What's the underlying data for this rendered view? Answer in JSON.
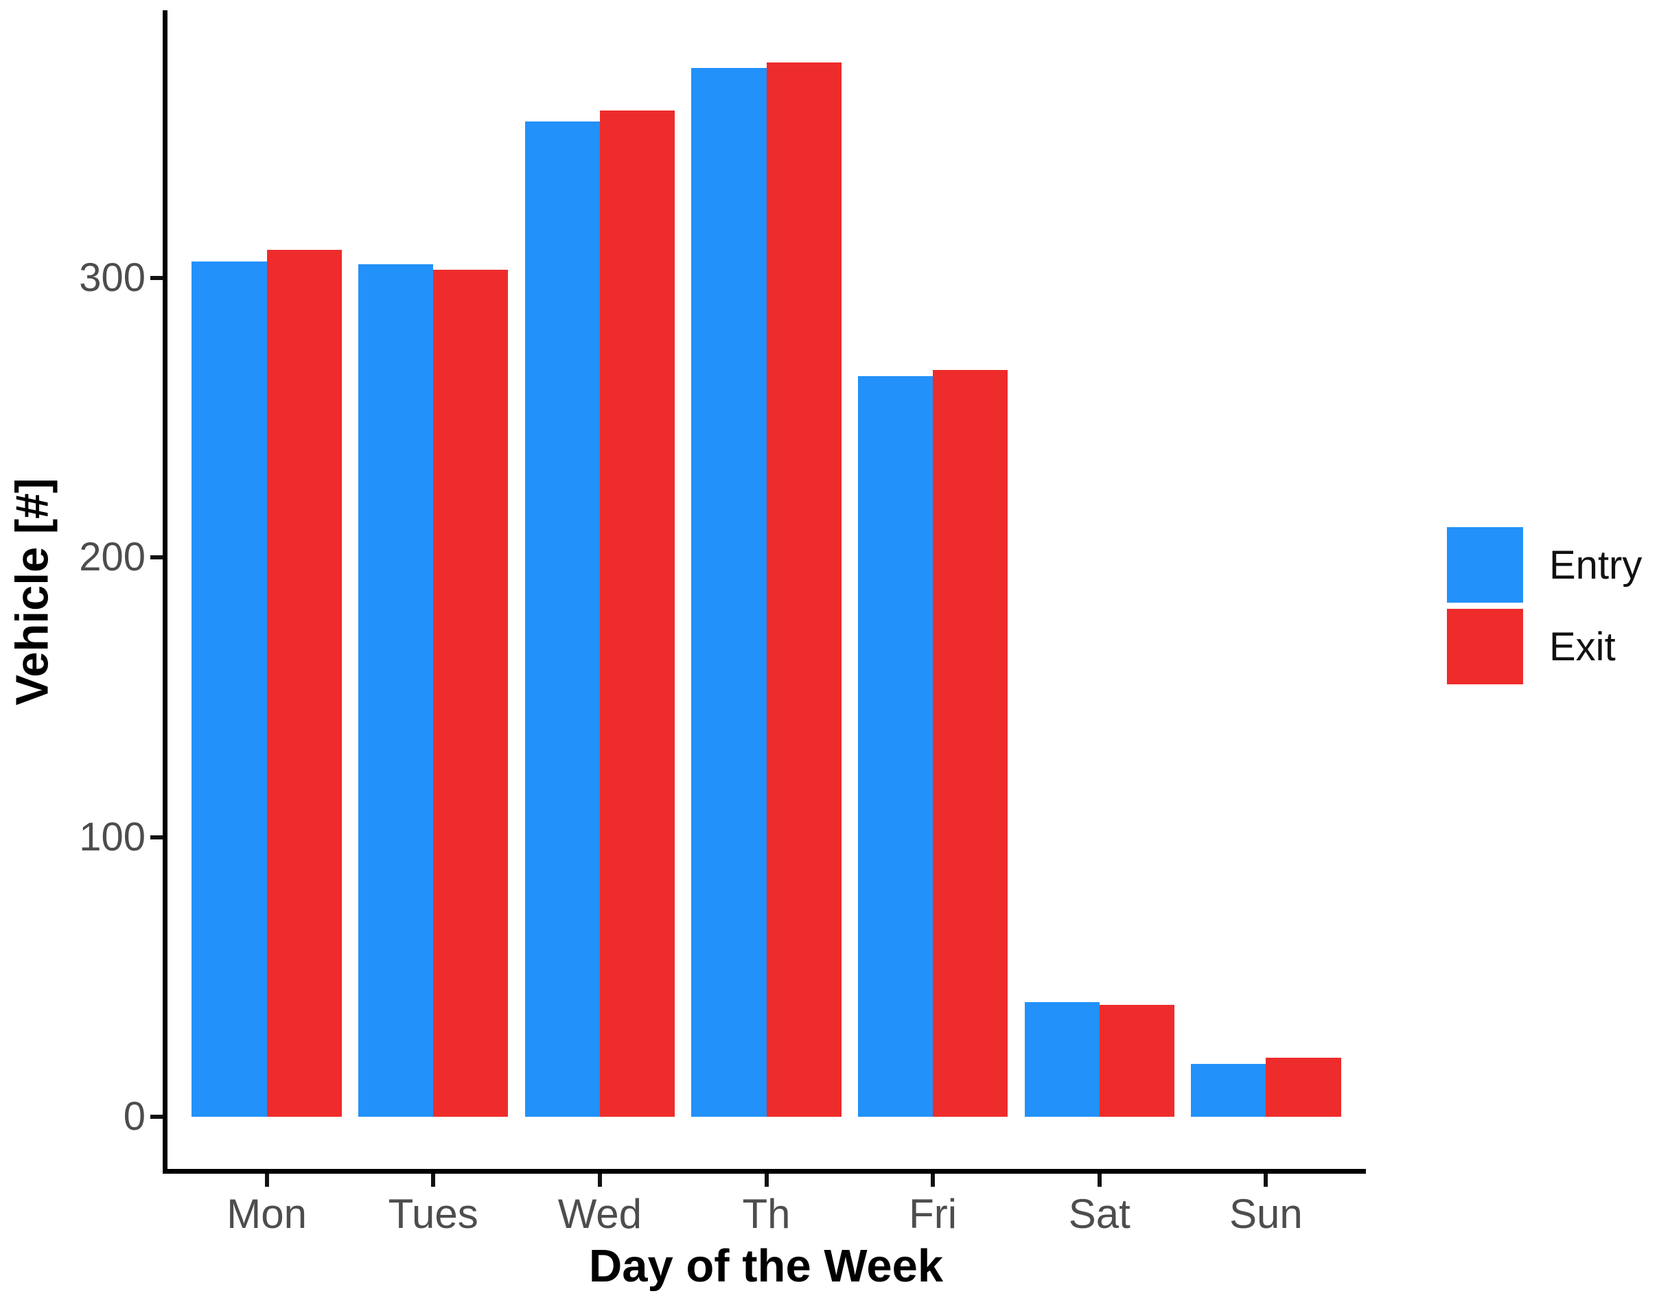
{
  "chart_data": {
    "type": "bar",
    "title": "",
    "xlabel": "Day of the Week",
    "ylabel": "Vehicle [#]",
    "categories": [
      "Mon",
      "Tues",
      "Wed",
      "Th",
      "Fri",
      "Sat",
      "Sun"
    ],
    "series": [
      {
        "name": "Entry",
        "color": "#2291FA",
        "values": [
          306,
          305,
          356,
          375,
          265,
          41,
          19
        ]
      },
      {
        "name": "Exit",
        "color": "#EE2C2C",
        "values": [
          310,
          303,
          360,
          377,
          267,
          40,
          21
        ]
      }
    ],
    "yticks": [
      0,
      100,
      200,
      300
    ],
    "ylim": [
      0,
      395
    ],
    "grid": false,
    "legend_position": "right",
    "colors": {
      "axis_line": "#000000",
      "tick_text": "#4d4d4d",
      "title_text": "#000000",
      "background": "#ffffff"
    }
  }
}
